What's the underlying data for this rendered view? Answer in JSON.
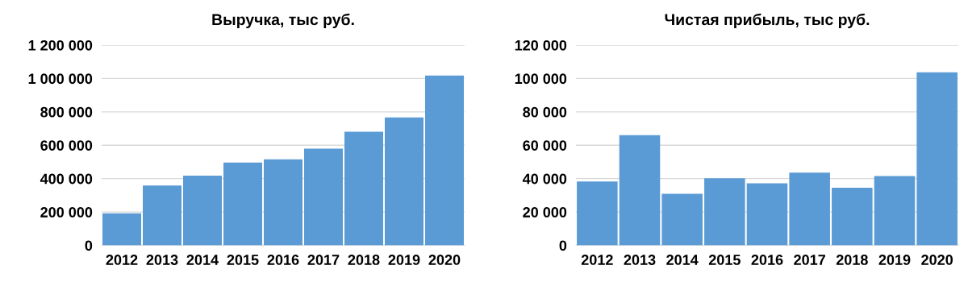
{
  "chart_data": [
    {
      "type": "bar",
      "title": "Выручка, тыс руб.",
      "categories": [
        "2012",
        "2013",
        "2014",
        "2015",
        "2016",
        "2017",
        "2018",
        "2019",
        "2020"
      ],
      "values": [
        192000,
        359000,
        418000,
        496000,
        515000,
        579000,
        681000,
        767000,
        1018000
      ],
      "color": "#5b9bd5",
      "ylim": [
        0,
        1200000
      ],
      "yticks": [
        {
          "value": 0,
          "label": "0"
        },
        {
          "value": 200000,
          "label": "200 000"
        },
        {
          "value": 400000,
          "label": "400 000"
        },
        {
          "value": 600000,
          "label": "600 000"
        },
        {
          "value": 800000,
          "label": "800 000"
        },
        {
          "value": 1000000,
          "label": "1 000 000"
        },
        {
          "value": 1200000,
          "label": "1 200 000"
        }
      ],
      "grid": "y"
    },
    {
      "type": "bar",
      "title": "Чистая прибыль, тыс руб.",
      "categories": [
        "2012",
        "2013",
        "2014",
        "2015",
        "2016",
        "2017",
        "2018",
        "2019",
        "2020"
      ],
      "values": [
        38300,
        66000,
        30900,
        40200,
        37200,
        43600,
        34500,
        41500,
        103700
      ],
      "color": "#5b9bd5",
      "ylim": [
        0,
        120000
      ],
      "yticks": [
        {
          "value": 0,
          "label": "0"
        },
        {
          "value": 20000,
          "label": "20 000"
        },
        {
          "value": 40000,
          "label": "40 000"
        },
        {
          "value": 60000,
          "label": "60 000"
        },
        {
          "value": 80000,
          "label": "80 000"
        },
        {
          "value": 100000,
          "label": "100 000"
        },
        {
          "value": 120000,
          "label": "120 000"
        }
      ],
      "grid": "y"
    }
  ]
}
